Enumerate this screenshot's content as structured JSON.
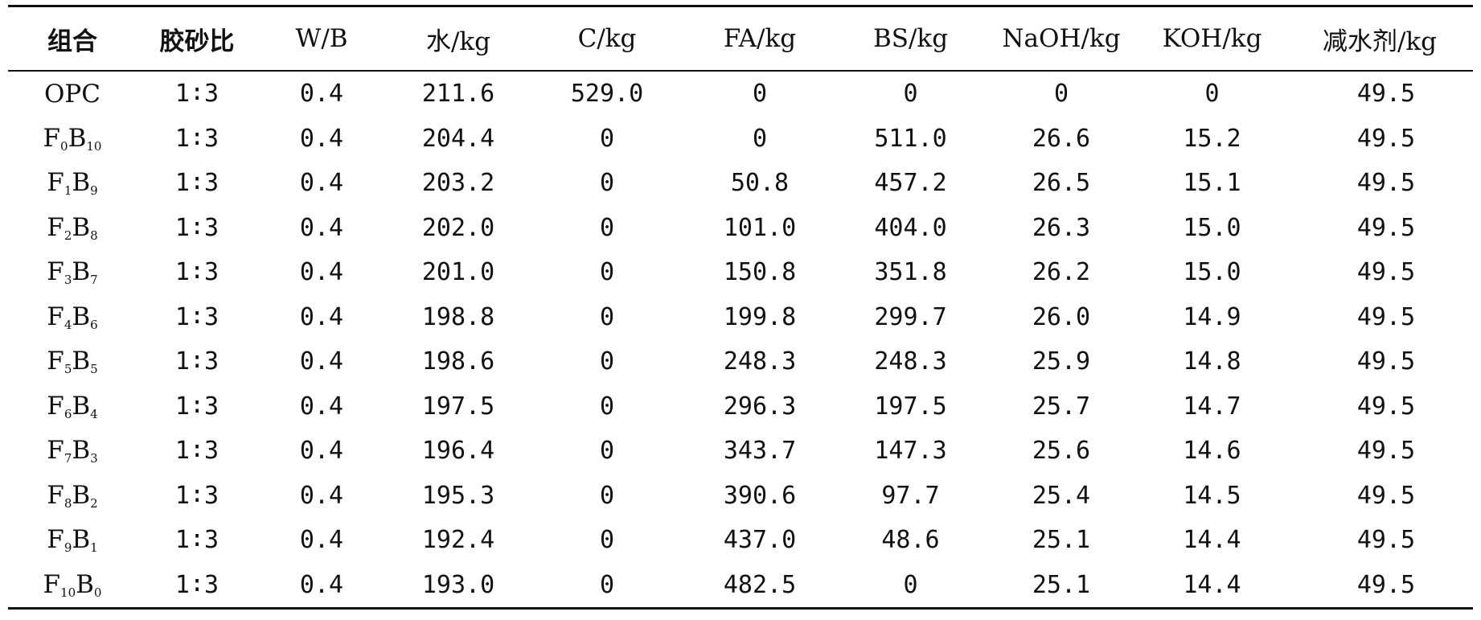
{
  "columns": [
    "组合",
    "胶砂比",
    "W/B",
    "水/kg",
    "C/kg",
    "FA/kg",
    "BS/kg",
    "NaOH/kg",
    "KOH/kg",
    "减水剂/kg"
  ],
  "rows": [
    {
      "name": {
        "base": "OPC"
      },
      "cells": [
        "1∶3",
        "0.4",
        "211.6",
        "529.0",
        "0",
        "0",
        "0",
        "0",
        "49.5"
      ]
    },
    {
      "name": {
        "f": "F",
        "fi": "0",
        "b": "B",
        "bi": "10"
      },
      "cells": [
        "1∶3",
        "0.4",
        "204.4",
        "0",
        "0",
        "511.0",
        "26.6",
        "15.2",
        "49.5"
      ]
    },
    {
      "name": {
        "f": "F",
        "fi": "1",
        "b": "B",
        "bi": "9"
      },
      "cells": [
        "1∶3",
        "0.4",
        "203.2",
        "0",
        "50.8",
        "457.2",
        "26.5",
        "15.1",
        "49.5"
      ]
    },
    {
      "name": {
        "f": "F",
        "fi": "2",
        "b": "B",
        "bi": "8"
      },
      "cells": [
        "1∶3",
        "0.4",
        "202.0",
        "0",
        "101.0",
        "404.0",
        "26.3",
        "15.0",
        "49.5"
      ]
    },
    {
      "name": {
        "f": "F",
        "fi": "3",
        "b": "B",
        "bi": "7"
      },
      "cells": [
        "1∶3",
        "0.4",
        "201.0",
        "0",
        "150.8",
        "351.8",
        "26.2",
        "15.0",
        "49.5"
      ]
    },
    {
      "name": {
        "f": "F",
        "fi": "4",
        "b": "B",
        "bi": "6"
      },
      "cells": [
        "1∶3",
        "0.4",
        "198.8",
        "0",
        "199.8",
        "299.7",
        "26.0",
        "14.9",
        "49.5"
      ]
    },
    {
      "name": {
        "f": "F",
        "fi": "5",
        "b": "B",
        "bi": "5"
      },
      "cells": [
        "1∶3",
        "0.4",
        "198.6",
        "0",
        "248.3",
        "248.3",
        "25.9",
        "14.8",
        "49.5"
      ]
    },
    {
      "name": {
        "f": "F",
        "fi": "6",
        "b": "B",
        "bi": "4"
      },
      "cells": [
        "1∶3",
        "0.4",
        "197.5",
        "0",
        "296.3",
        "197.5",
        "25.7",
        "14.7",
        "49.5"
      ]
    },
    {
      "name": {
        "f": "F",
        "fi": "7",
        "b": "B",
        "bi": "3"
      },
      "cells": [
        "1∶3",
        "0.4",
        "196.4",
        "0",
        "343.7",
        "147.3",
        "25.6",
        "14.6",
        "49.5"
      ]
    },
    {
      "name": {
        "f": "F",
        "fi": "8",
        "b": "B",
        "bi": "2"
      },
      "cells": [
        "1∶3",
        "0.4",
        "195.3",
        "0",
        "390.6",
        "97.7",
        "25.4",
        "14.5",
        "49.5"
      ]
    },
    {
      "name": {
        "f": "F",
        "fi": "9",
        "b": "B",
        "bi": "1"
      },
      "cells": [
        "1∶3",
        "0.4",
        "192.4",
        "0",
        "437.0",
        "48.6",
        "25.1",
        "14.4",
        "49.5"
      ]
    },
    {
      "name": {
        "f": "F",
        "fi": "10",
        "b": "B",
        "bi": "0"
      },
      "cells": [
        "1∶3",
        "0.4",
        "193.0",
        "0",
        "482.5",
        "0",
        "25.1",
        "14.4",
        "49.5"
      ]
    }
  ]
}
